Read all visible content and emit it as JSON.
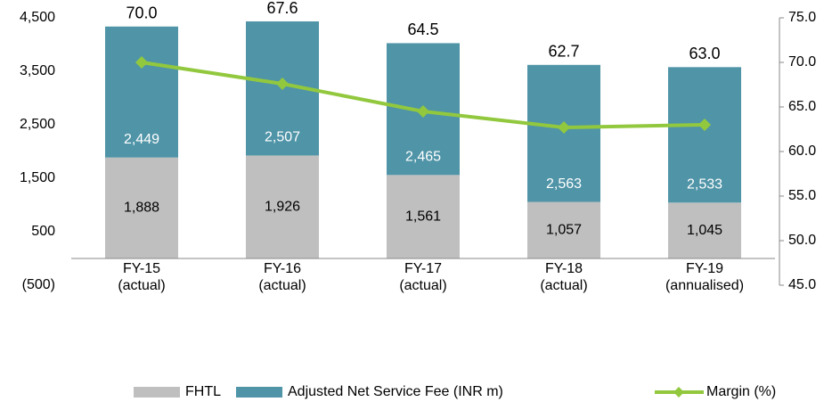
{
  "chart_data": {
    "type": "bar",
    "stacked": true,
    "categories": [
      "FY-15\n(actual)",
      "FY-16\n(actual)",
      "FY-17\n(actual)",
      "FY-18\n(actual)",
      "FY-19\n(annualised)"
    ],
    "series": [
      {
        "name": "FHTL",
        "color": "#bfbfbf",
        "values": [
          1888,
          1926,
          1561,
          1057,
          1045
        ],
        "value_labels": [
          "1,888",
          "1,926",
          "1,561",
          "1,057",
          "1,045"
        ]
      },
      {
        "name": "Adjusted Net Service Fee (INR m)",
        "color": "#4f94a7",
        "values": [
          2449,
          2507,
          2465,
          2563,
          2533
        ],
        "value_labels": [
          "2,449",
          "2,507",
          "2,465",
          "2,563",
          "2,533"
        ]
      },
      {
        "name": "Margin (%)",
        "type": "line",
        "axis": "y2",
        "color": "#92c83e",
        "values": [
          70.0,
          67.6,
          64.5,
          62.7,
          63.0
        ],
        "value_labels": [
          "70.0",
          "67.6",
          "64.5",
          "62.7",
          "63.0"
        ]
      }
    ],
    "ylim": [
      -500,
      4500
    ],
    "yticks": [
      {
        "value": -500,
        "label": "(500)"
      },
      500,
      {
        "value": 1500,
        "label": "1,500"
      },
      {
        "value": 2500,
        "label": "2,500"
      },
      {
        "value": 3500,
        "label": "3,500"
      },
      {
        "value": 4500,
        "label": "4,500"
      }
    ],
    "y2lim": [
      45,
      75
    ],
    "y2ticks": [
      {
        "value": 45,
        "label": "45.0"
      },
      {
        "value": 50,
        "label": "50.0"
      },
      {
        "value": 55,
        "label": "55.0"
      },
      {
        "value": 60,
        "label": "60.0"
      },
      {
        "value": 65,
        "label": "65.0"
      },
      {
        "value": 70,
        "label": "70.0"
      },
      {
        "value": 75,
        "label": "75.0"
      }
    ],
    "legend": "bottom"
  }
}
